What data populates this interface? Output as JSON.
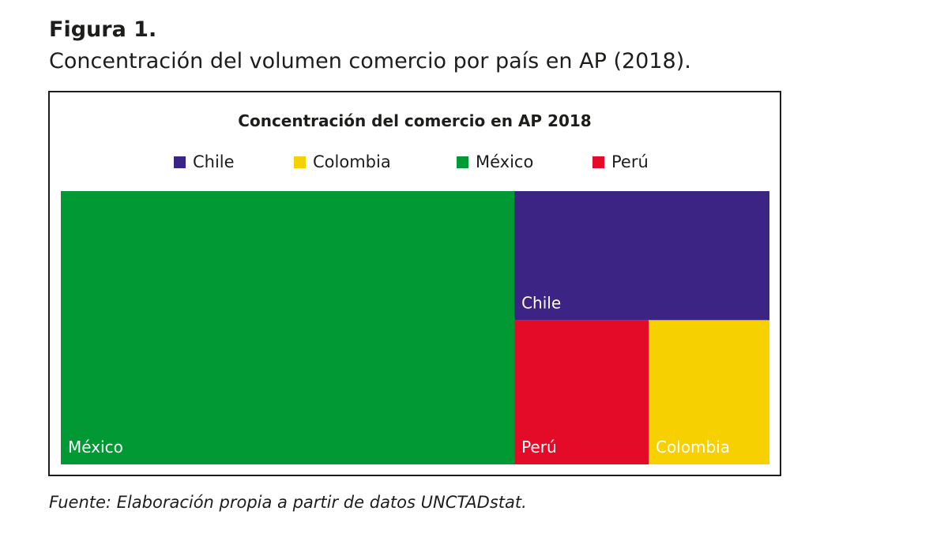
{
  "figure": {
    "label": "Figura 1.",
    "caption": "Concentración del volumen comercio por país en AP (2018).",
    "source": "Fuente: Elaboración propia a partir de datos UNCTADstat."
  },
  "chart_data": {
    "type": "treemap",
    "title": "Concentración del comercio en AP 2018",
    "legend": [
      "Chile",
      "Colombia",
      "México",
      "Perú"
    ],
    "legend_position": "top",
    "series": [
      {
        "name": "México",
        "share": 0.64,
        "color": "#009933"
      },
      {
        "name": "Chile",
        "share": 0.17,
        "color": "#3b2483"
      },
      {
        "name": "Perú",
        "share": 0.1,
        "color": "#e30b27"
      },
      {
        "name": "Colombia",
        "share": 0.09,
        "color": "#f7d000"
      }
    ]
  }
}
